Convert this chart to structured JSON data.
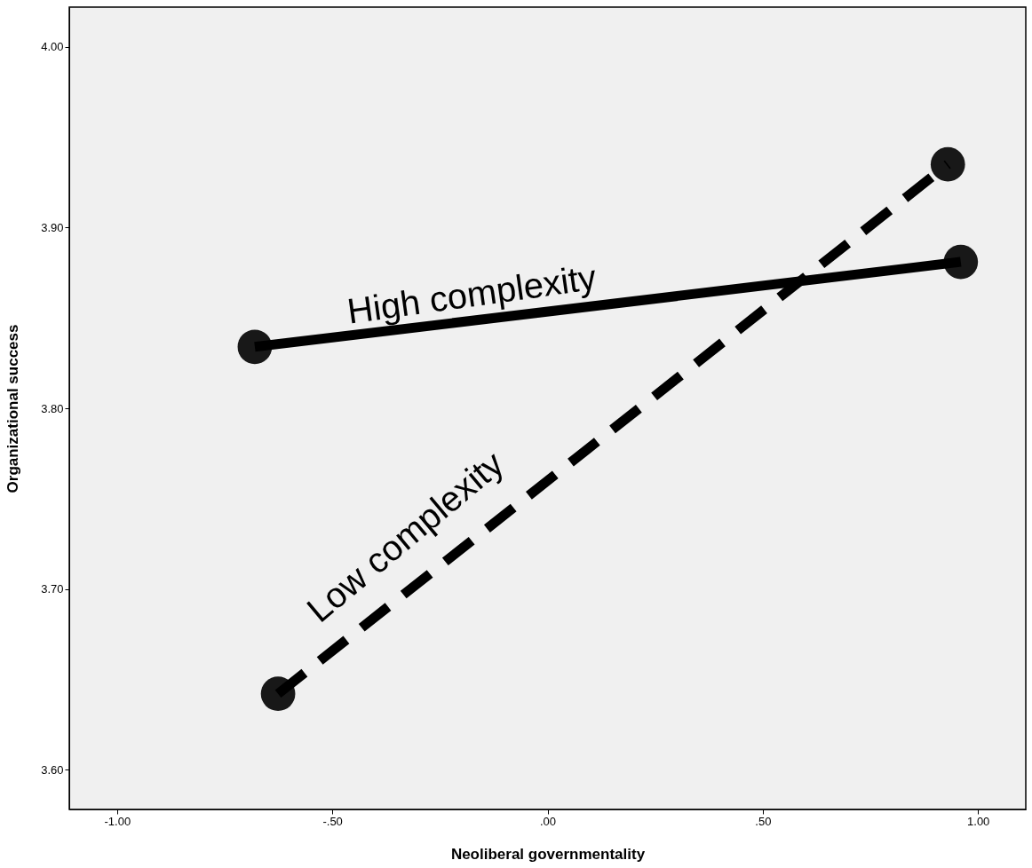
{
  "chart_data": {
    "type": "line",
    "xlabel": "Neoliberal governmentality",
    "ylabel": "Organizational success",
    "xlim": [
      -1.111,
      1.111
    ],
    "ylim": [
      3.578,
      4.022
    ],
    "xticks": [
      {
        "value": -1,
        "label": "-1.00"
      },
      {
        "value": -0.5,
        "label": "-.50"
      },
      {
        "value": 0,
        "label": ".00"
      },
      {
        "value": 0.5,
        "label": ".50"
      },
      {
        "value": 1,
        "label": "1.00"
      }
    ],
    "yticks": [
      {
        "value": 3.6,
        "label": "3.60"
      },
      {
        "value": 3.7,
        "label": "3.70"
      },
      {
        "value": 3.8,
        "label": "3.80"
      },
      {
        "value": 3.9,
        "label": "3.90"
      },
      {
        "value": 4.0,
        "label": "4.00"
      }
    ],
    "grid": false,
    "legend": false,
    "marker": "circle",
    "series": [
      {
        "name": "High complexity",
        "color": "#000000",
        "line_style": "solid",
        "x": [
          -0.68,
          0.96
        ],
        "values": [
          3.834,
          3.881
        ]
      },
      {
        "name": "Low complexity",
        "color": "#000000",
        "line_style": "dashed",
        "x": [
          -0.626,
          0.93
        ],
        "values": [
          3.642,
          3.935
        ]
      }
    ]
  }
}
